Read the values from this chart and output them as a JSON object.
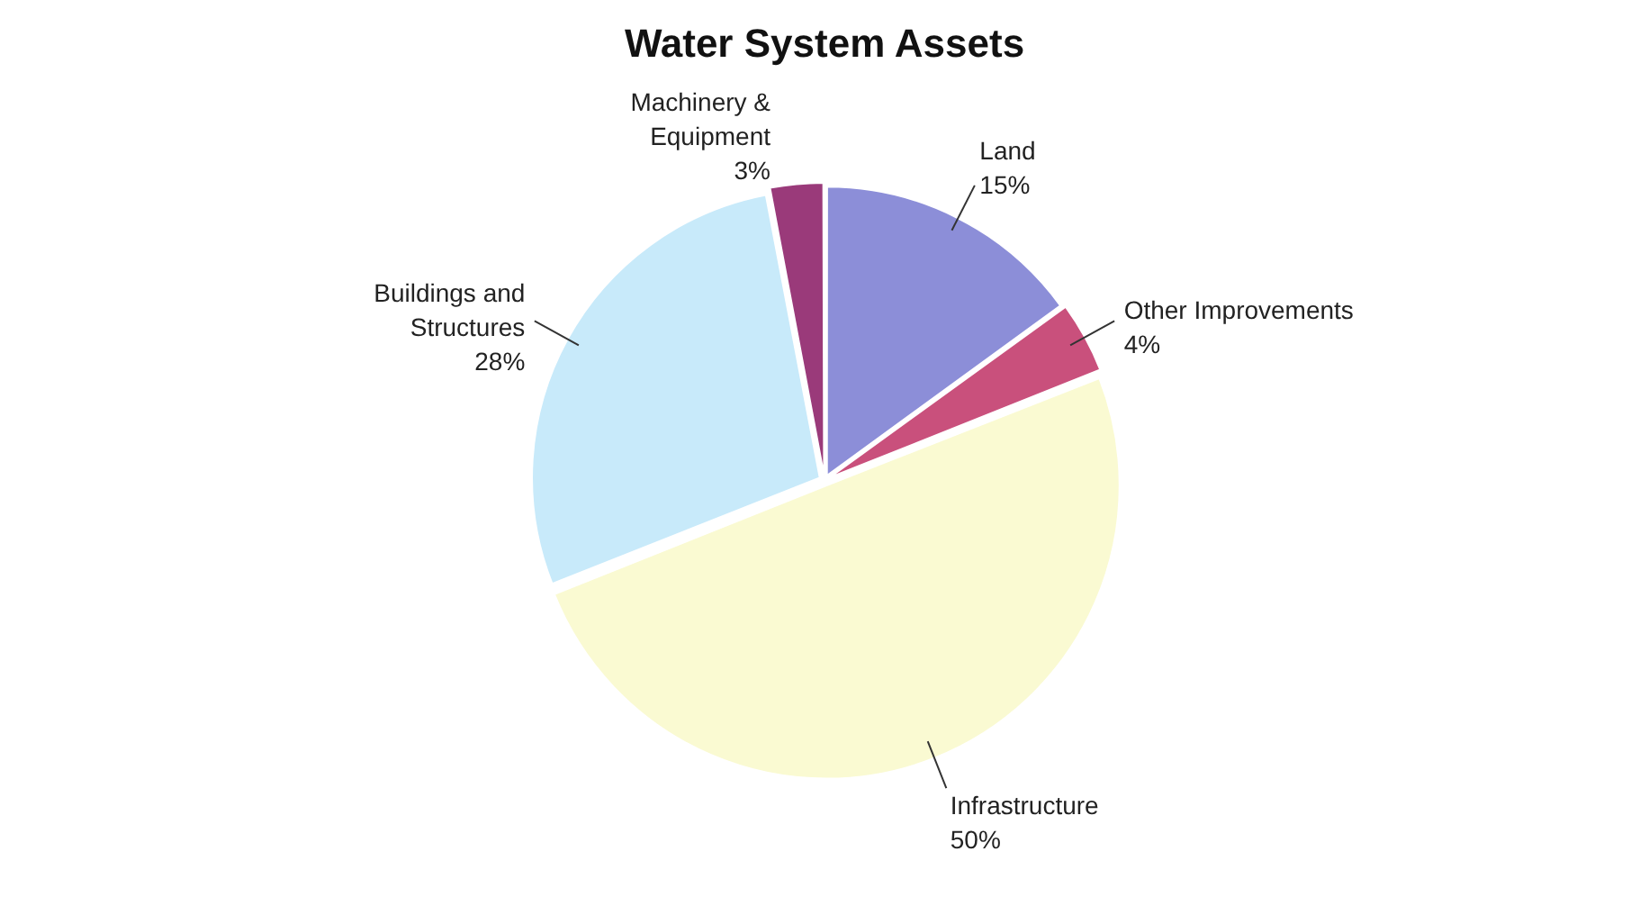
{
  "chart_data": {
    "type": "pie",
    "title": "Water System Assets",
    "categories": [
      "Land",
      "Other Improvements",
      "Infrastructure",
      "Buildings and Structures",
      "Machinery & Equipment"
    ],
    "values": [
      15,
      4,
      50,
      28,
      3
    ],
    "colors": [
      "#8c8ed8",
      "#c9507c",
      "#fafad2",
      "#c8eafa",
      "#9a3a7a"
    ],
    "value_labels": [
      "15%",
      "4%",
      "50%",
      "28%",
      "3%"
    ],
    "legend": false
  }
}
